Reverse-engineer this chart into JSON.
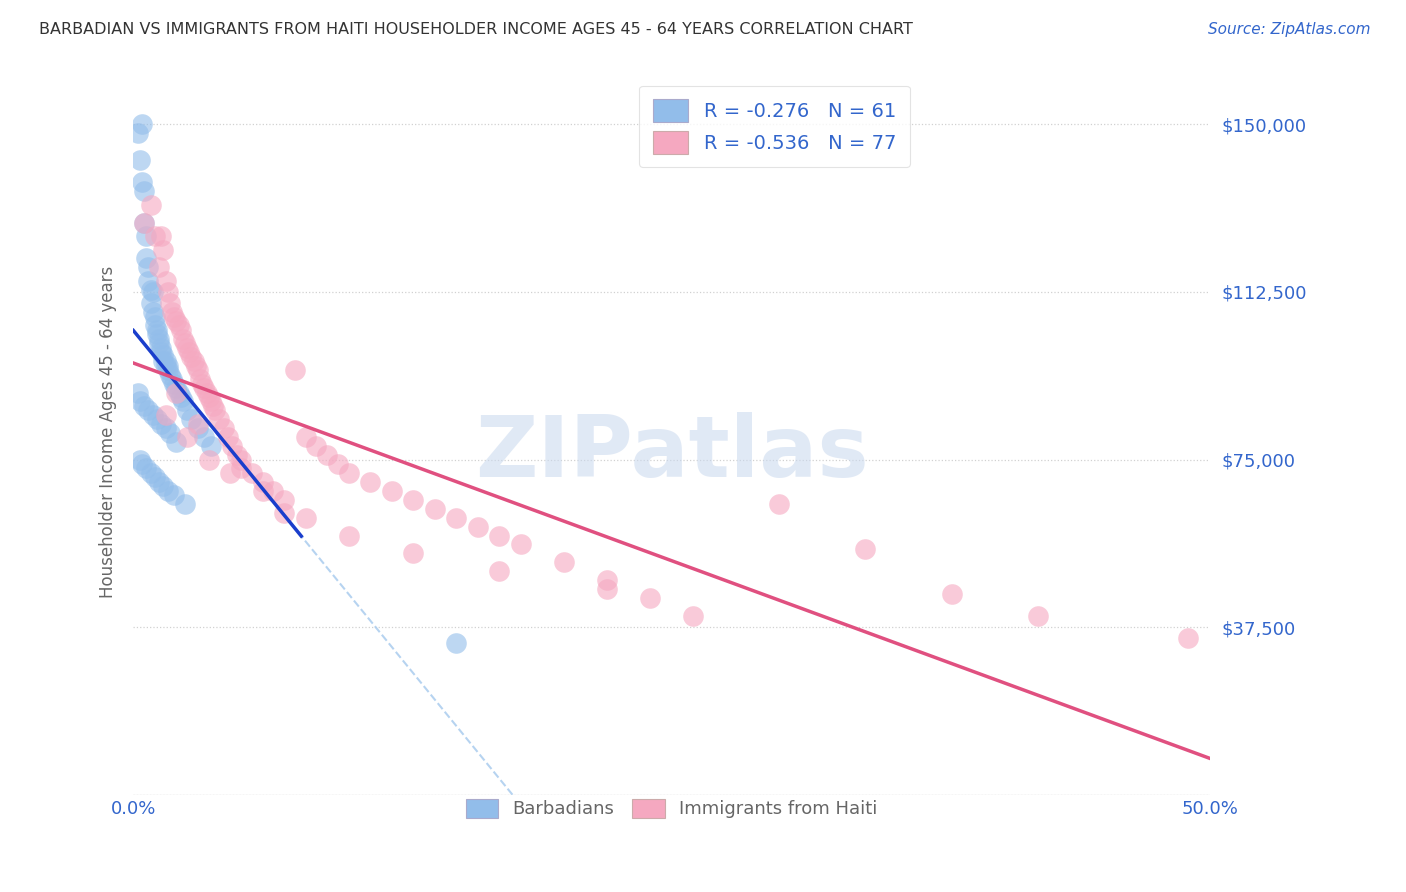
{
  "title": "BARBADIAN VS IMMIGRANTS FROM HAITI HOUSEHOLDER INCOME AGES 45 - 64 YEARS CORRELATION CHART",
  "source": "Source: ZipAtlas.com",
  "ylabel": "Householder Income Ages 45 - 64 years",
  "xlim": [
    0.0,
    0.5
  ],
  "ylim": [
    0,
    162500
  ],
  "yticks": [
    0,
    37500,
    75000,
    112500,
    150000
  ],
  "ytick_labels": [
    "",
    "$37,500",
    "$75,000",
    "$112,500",
    "$150,000"
  ],
  "xticks": [
    0.0,
    0.1,
    0.2,
    0.3,
    0.4,
    0.5
  ],
  "xtick_labels": [
    "0.0%",
    "",
    "",
    "",
    "",
    "50.0%"
  ],
  "legend_R1": "-0.276",
  "legend_N1": "61",
  "legend_R2": "-0.536",
  "legend_N2": "77",
  "color_blue": "#92BDEA",
  "color_pink": "#F5A8C0",
  "color_blue_line": "#1A3ECC",
  "color_pink_line": "#E05080",
  "color_blue_dashed": "#AACCEE",
  "color_text": "#3366CC",
  "color_gray_text": "#666666",
  "background": "#FFFFFF",
  "watermark_color": "#C8D8EE",
  "blue_x": [
    0.002,
    0.003,
    0.004,
    0.004,
    0.005,
    0.005,
    0.006,
    0.006,
    0.007,
    0.007,
    0.008,
    0.008,
    0.009,
    0.009,
    0.01,
    0.01,
    0.011,
    0.011,
    0.012,
    0.012,
    0.013,
    0.013,
    0.014,
    0.014,
    0.015,
    0.015,
    0.016,
    0.016,
    0.017,
    0.018,
    0.019,
    0.02,
    0.021,
    0.022,
    0.023,
    0.025,
    0.027,
    0.03,
    0.033,
    0.036,
    0.002,
    0.003,
    0.005,
    0.007,
    0.009,
    0.011,
    0.013,
    0.015,
    0.017,
    0.02,
    0.003,
    0.004,
    0.006,
    0.008,
    0.01,
    0.012,
    0.014,
    0.016,
    0.019,
    0.024,
    0.15
  ],
  "blue_y": [
    148000,
    142000,
    150000,
    137000,
    135000,
    128000,
    125000,
    120000,
    118000,
    115000,
    113000,
    110000,
    108000,
    112500,
    107000,
    105000,
    104000,
    103000,
    102000,
    101000,
    100000,
    99000,
    98500,
    97000,
    97000,
    96000,
    96000,
    95000,
    94000,
    93000,
    92000,
    91000,
    90000,
    89000,
    88000,
    86000,
    84000,
    82000,
    80000,
    78000,
    90000,
    88000,
    87000,
    86000,
    85000,
    84000,
    83000,
    82000,
    81000,
    79000,
    75000,
    74000,
    73000,
    72000,
    71000,
    70000,
    69000,
    68000,
    67000,
    65000,
    34000
  ],
  "pink_x": [
    0.005,
    0.008,
    0.01,
    0.012,
    0.013,
    0.014,
    0.015,
    0.016,
    0.017,
    0.018,
    0.019,
    0.02,
    0.021,
    0.022,
    0.023,
    0.024,
    0.025,
    0.026,
    0.027,
    0.028,
    0.029,
    0.03,
    0.031,
    0.032,
    0.033,
    0.034,
    0.035,
    0.036,
    0.037,
    0.038,
    0.04,
    0.042,
    0.044,
    0.046,
    0.048,
    0.05,
    0.055,
    0.06,
    0.065,
    0.07,
    0.075,
    0.08,
    0.085,
    0.09,
    0.095,
    0.1,
    0.11,
    0.12,
    0.13,
    0.14,
    0.15,
    0.16,
    0.17,
    0.18,
    0.2,
    0.22,
    0.24,
    0.26,
    0.3,
    0.34,
    0.38,
    0.42,
    0.015,
    0.025,
    0.035,
    0.045,
    0.06,
    0.08,
    0.1,
    0.13,
    0.17,
    0.22,
    0.02,
    0.03,
    0.05,
    0.07,
    0.49
  ],
  "pink_y": [
    128000,
    132000,
    125000,
    118000,
    125000,
    122000,
    115000,
    112500,
    110000,
    108000,
    107000,
    106000,
    105000,
    104000,
    102000,
    101000,
    100000,
    99000,
    98000,
    97000,
    96000,
    95000,
    93000,
    92000,
    91000,
    90000,
    89000,
    88000,
    87000,
    86000,
    84000,
    82000,
    80000,
    78000,
    76000,
    75000,
    72000,
    70000,
    68000,
    66000,
    95000,
    80000,
    78000,
    76000,
    74000,
    72000,
    70000,
    68000,
    66000,
    64000,
    62000,
    60000,
    58000,
    56000,
    52000,
    48000,
    44000,
    40000,
    65000,
    55000,
    45000,
    40000,
    85000,
    80000,
    75000,
    72000,
    68000,
    62000,
    58000,
    54000,
    50000,
    46000,
    90000,
    83000,
    73000,
    63000,
    35000
  ]
}
